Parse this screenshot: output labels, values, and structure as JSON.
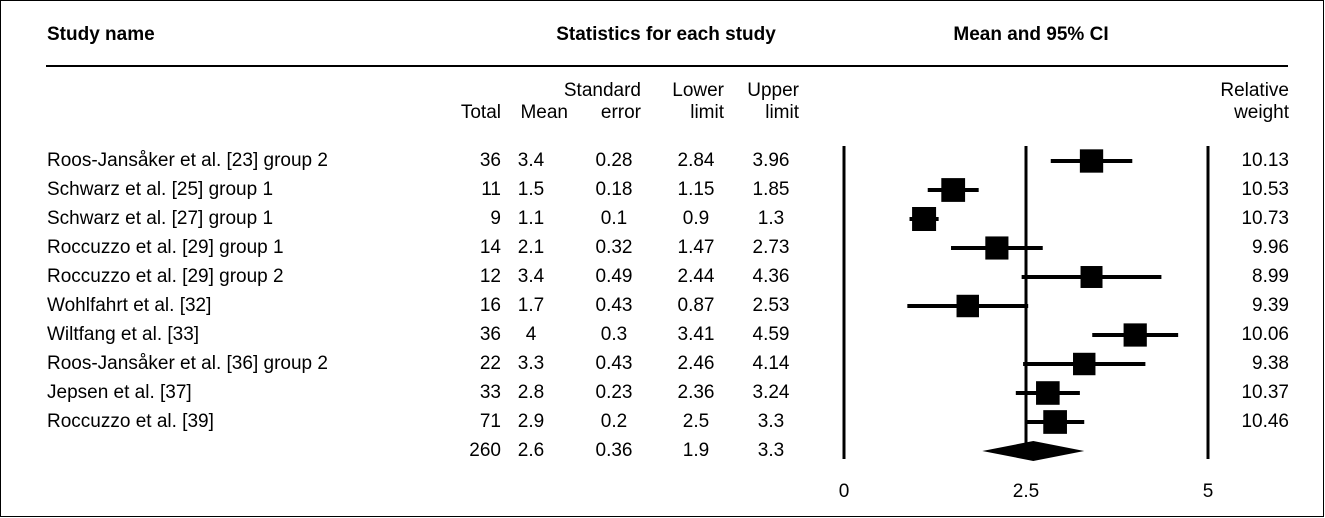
{
  "header": {
    "study_name": "Study name",
    "stats": "Statistics for each study",
    "ci": "Mean and 95% CI"
  },
  "columns": {
    "total": "Total",
    "mean": "Mean",
    "se_1": "Standard",
    "se_2": "error",
    "lower_1": "Lower",
    "lower_2": "limit",
    "upper_1": "Upper",
    "upper_2": "limit",
    "weight_1": "Relative",
    "weight_2": "weight"
  },
  "rows": [
    {
      "study": "Roos-Jansåker et al. [23] group 2",
      "total": "36",
      "mean": "3.4",
      "se": "0.28",
      "lower": "2.84",
      "upper": "3.96",
      "weight": "10.13"
    },
    {
      "study": "Schwarz et al. [25] group 1",
      "total": "11",
      "mean": "1.5",
      "se": "0.18",
      "lower": "1.15",
      "upper": "1.85",
      "weight": "10.53"
    },
    {
      "study": "Schwarz et al. [27] group 1",
      "total": "9",
      "mean": "1.1",
      "se": "0.1",
      "lower": "0.9",
      "upper": "1.3",
      "weight": "10.73"
    },
    {
      "study": "Roccuzzo et al. [29] group 1",
      "total": "14",
      "mean": "2.1",
      "se": "0.32",
      "lower": "1.47",
      "upper": "2.73",
      "weight": "9.96"
    },
    {
      "study": "Roccuzzo et al. [29] group 2",
      "total": "12",
      "mean": "3.4",
      "se": "0.49",
      "lower": "2.44",
      "upper": "4.36",
      "weight": "8.99"
    },
    {
      "study": "Wohlfahrt et al. [32]",
      "total": "16",
      "mean": "1.7",
      "se": "0.43",
      "lower": "0.87",
      "upper": "2.53",
      "weight": "9.39"
    },
    {
      "study": "Wiltfang et al. [33]",
      "total": "36",
      "mean": "4",
      "se": "0.3",
      "lower": "3.41",
      "upper": "4.59",
      "weight": "10.06"
    },
    {
      "study": "Roos-Jansåker et al. [36] group 2",
      "total": "22",
      "mean": "3.3",
      "se": "0.43",
      "lower": "2.46",
      "upper": "4.14",
      "weight": "9.38"
    },
    {
      "study": "Jepsen et al. [37]",
      "total": "33",
      "mean": "2.8",
      "se": "0.23",
      "lower": "2.36",
      "upper": "3.24",
      "weight": "10.37"
    },
    {
      "study": "Roccuzzo et al. [39]",
      "total": "71",
      "mean": "2.9",
      "se": "0.2",
      "lower": "2.5",
      "upper": "3.3",
      "weight": "10.46"
    }
  ],
  "summary": {
    "total": "260",
    "mean": "2.6",
    "se": "0.36",
    "lower": "1.9",
    "upper": "3.3"
  },
  "chart_data": {
    "type": "forest",
    "title": "Mean and 95% CI",
    "x_ticks": [
      "0",
      "2.5",
      "5"
    ],
    "xlim": [
      0,
      5
    ],
    "reference_line": 2.5,
    "studies": [
      {
        "name": "Roos-Jansåker et al. [23] group 2",
        "mean": 3.4,
        "lower": 2.84,
        "upper": 3.96,
        "weight": 10.13
      },
      {
        "name": "Schwarz et al. [25] group 1",
        "mean": 1.5,
        "lower": 1.15,
        "upper": 1.85,
        "weight": 10.53
      },
      {
        "name": "Schwarz et al. [27] group 1",
        "mean": 1.1,
        "lower": 0.9,
        "upper": 1.3,
        "weight": 10.73
      },
      {
        "name": "Roccuzzo et al. [29] group 1",
        "mean": 2.1,
        "lower": 1.47,
        "upper": 2.73,
        "weight": 9.96
      },
      {
        "name": "Roccuzzo et al. [29] group 2",
        "mean": 3.4,
        "lower": 2.44,
        "upper": 4.36,
        "weight": 8.99
      },
      {
        "name": "Wohlfahrt et al. [32]",
        "mean": 1.7,
        "lower": 0.87,
        "upper": 2.53,
        "weight": 9.39
      },
      {
        "name": "Wiltfang et al. [33]",
        "mean": 4,
        "lower": 3.41,
        "upper": 4.59,
        "weight": 10.06
      },
      {
        "name": "Roos-Jansåker et al. [36] group 2",
        "mean": 3.3,
        "lower": 2.46,
        "upper": 4.14,
        "weight": 9.38
      },
      {
        "name": "Jepsen et al. [37]",
        "mean": 2.8,
        "lower": 2.36,
        "upper": 3.24,
        "weight": 10.37
      },
      {
        "name": "Roccuzzo et al. [39]",
        "mean": 2.9,
        "lower": 2.5,
        "upper": 3.3,
        "weight": 10.46
      }
    ],
    "summary": {
      "mean": 2.6,
      "lower": 1.9,
      "upper": 3.3
    }
  }
}
